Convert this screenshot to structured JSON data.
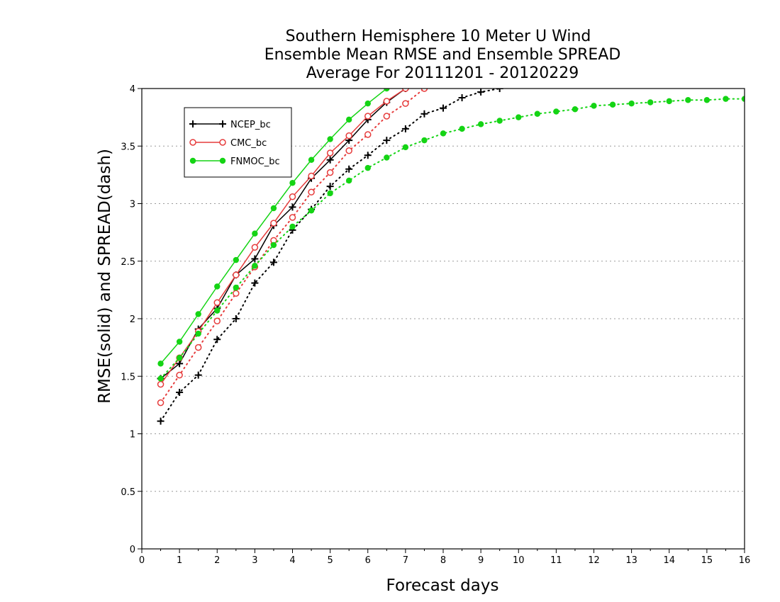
{
  "chart_data": {
    "type": "line",
    "title_lines": [
      "Southern Hemisphere 10 Meter U Wind",
      "Ensemble Mean RMSE and Ensemble SPREAD",
      "Average For 20111201 - 20120229"
    ],
    "xlabel": "Forecast days",
    "ylabel": "RMSE(solid) and SPREAD(dash)",
    "xlim": [
      0,
      16
    ],
    "ylim": [
      0,
      4
    ],
    "x_ticks": [
      "0",
      "1",
      "2",
      "3",
      "4",
      "5",
      "6",
      "7",
      "8",
      "9",
      "10",
      "11",
      "12",
      "13",
      "14",
      "15",
      "16"
    ],
    "y_ticks": [
      "0",
      "0.5",
      "1",
      "1.5",
      "2",
      "2.5",
      "3",
      "3.5",
      "4"
    ],
    "grid": "horizontal dotted",
    "legend_position": "top-left",
    "series": [
      {
        "name": "NCEP_bc",
        "color": "#000000",
        "marker": "plus",
        "rmse": {
          "x": [
            0.5,
            1,
            1.5,
            2,
            2.5,
            3,
            3.5,
            4,
            4.5,
            5,
            5.5,
            6,
            6.5,
            7
          ],
          "y": [
            1.48,
            1.61,
            1.91,
            2.09,
            2.38,
            2.52,
            2.81,
            2.97,
            3.22,
            3.38,
            3.55,
            3.73,
            3.88,
            4.0
          ]
        },
        "spread": {
          "x": [
            0.5,
            1,
            1.5,
            2,
            2.5,
            3,
            3.5,
            4,
            4.5,
            5,
            5.5,
            6,
            6.5,
            7,
            7.5,
            8,
            8.5,
            9,
            9.5
          ],
          "y": [
            1.11,
            1.36,
            1.51,
            1.82,
            2.0,
            2.31,
            2.49,
            2.77,
            2.95,
            3.15,
            3.3,
            3.42,
            3.55,
            3.65,
            3.78,
            3.83,
            3.92,
            3.97,
            4.0
          ]
        }
      },
      {
        "name": "CMC_bc",
        "color": "#e63c3c",
        "marker": "open-circle",
        "rmse": {
          "x": [
            0.5,
            1,
            1.5,
            2,
            2.5,
            3,
            3.5,
            4,
            4.5,
            5,
            5.5,
            6,
            6.5,
            7
          ],
          "y": [
            1.43,
            1.66,
            1.89,
            2.14,
            2.38,
            2.62,
            2.83,
            3.06,
            3.24,
            3.44,
            3.59,
            3.76,
            3.89,
            4.0
          ]
        },
        "spread": {
          "x": [
            0.5,
            1,
            1.5,
            2,
            2.5,
            3,
            3.5,
            4,
            4.5,
            5,
            5.5,
            6,
            6.5,
            7,
            7.5
          ],
          "y": [
            1.27,
            1.51,
            1.75,
            1.98,
            2.22,
            2.45,
            2.68,
            2.88,
            3.1,
            3.27,
            3.46,
            3.6,
            3.76,
            3.87,
            4.0
          ]
        }
      },
      {
        "name": "FNMOC_bc",
        "color": "#14d414",
        "marker": "filled-circle",
        "rmse": {
          "x": [
            0.5,
            1,
            1.5,
            2,
            2.5,
            3,
            3.5,
            4,
            4.5,
            5,
            5.5,
            6,
            6.5
          ],
          "y": [
            1.61,
            1.8,
            2.04,
            2.28,
            2.51,
            2.74,
            2.96,
            3.18,
            3.38,
            3.56,
            3.73,
            3.87,
            4.0
          ]
        },
        "spread": {
          "x": [
            0.5,
            1,
            1.5,
            2,
            2.5,
            3,
            3.5,
            4,
            4.5,
            5,
            5.5,
            6,
            6.5,
            7,
            7.5,
            8,
            8.5,
            9,
            9.5,
            10,
            10.5,
            11,
            11.5,
            12,
            12.5,
            13,
            13.5,
            14,
            14.5,
            15,
            15.5,
            16
          ],
          "y": [
            1.48,
            1.66,
            1.87,
            2.07,
            2.27,
            2.46,
            2.64,
            2.8,
            2.94,
            3.09,
            3.2,
            3.31,
            3.4,
            3.49,
            3.55,
            3.61,
            3.65,
            3.69,
            3.72,
            3.75,
            3.78,
            3.8,
            3.82,
            3.85,
            3.86,
            3.87,
            3.88,
            3.89,
            3.9,
            3.9,
            3.91,
            3.91
          ]
        }
      }
    ]
  }
}
